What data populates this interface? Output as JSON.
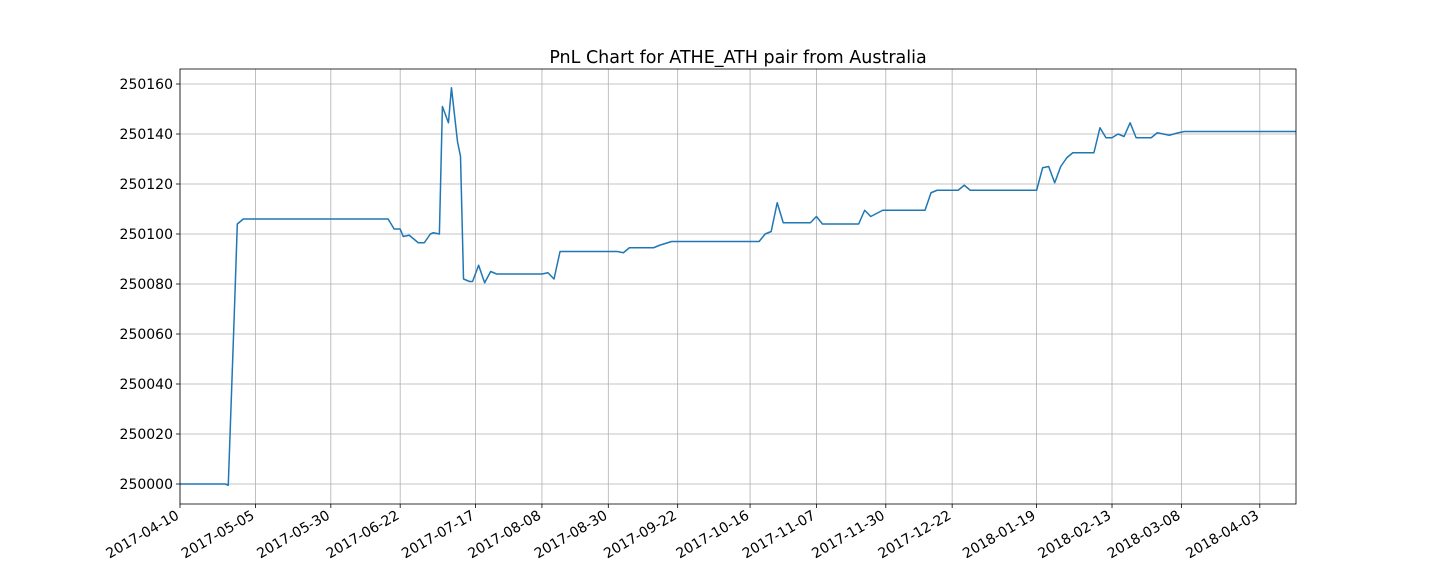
{
  "chart_data": {
    "type": "line",
    "title": "PnL Chart for ATHE_ATH pair from Australia",
    "xlabel": "",
    "ylabel": "",
    "x_type": "date",
    "xlim": [
      "2017-04-10",
      "2018-04-15"
    ],
    "ylim": [
      249992,
      250166
    ],
    "x_ticks": [
      "2017-04-10",
      "2017-05-05",
      "2017-05-30",
      "2017-06-22",
      "2017-07-17",
      "2017-08-08",
      "2017-08-30",
      "2017-09-22",
      "2017-10-16",
      "2017-11-07",
      "2017-11-30",
      "2017-12-22",
      "2018-01-19",
      "2018-02-13",
      "2018-03-08",
      "2018-04-03"
    ],
    "y_ticks": [
      250000,
      250020,
      250040,
      250060,
      250080,
      250100,
      250120,
      250140,
      250160
    ],
    "grid": true,
    "legend": "none",
    "series": [
      {
        "color": "#1f77b4",
        "points": [
          [
            "2017-04-10",
            250000
          ],
          [
            "2017-04-25",
            250000
          ],
          [
            "2017-04-26",
            249999.5
          ],
          [
            "2017-04-28",
            250068
          ],
          [
            "2017-04-29",
            250104
          ],
          [
            "2017-05-01",
            250106
          ],
          [
            "2017-06-18",
            250106
          ],
          [
            "2017-06-20",
            250102
          ],
          [
            "2017-06-22",
            250102
          ],
          [
            "2017-06-23",
            250099
          ],
          [
            "2017-06-25",
            250099.5
          ],
          [
            "2017-06-28",
            250096.5
          ],
          [
            "2017-06-30",
            250096.5
          ],
          [
            "2017-07-02",
            250100
          ],
          [
            "2017-07-03",
            250100.5
          ],
          [
            "2017-07-05",
            250100
          ],
          [
            "2017-07-06",
            250151
          ],
          [
            "2017-07-08",
            250144.5
          ],
          [
            "2017-07-09",
            250158.5
          ],
          [
            "2017-07-11",
            250137
          ],
          [
            "2017-07-12",
            250131
          ],
          [
            "2017-07-13",
            250082
          ],
          [
            "2017-07-15",
            250081
          ],
          [
            "2017-07-16",
            250081
          ],
          [
            "2017-07-18",
            250087.5
          ],
          [
            "2017-07-20",
            250080.5
          ],
          [
            "2017-07-22",
            250085
          ],
          [
            "2017-07-24",
            250084
          ],
          [
            "2017-08-08",
            250084
          ],
          [
            "2017-08-10",
            250084.5
          ],
          [
            "2017-08-12",
            250082
          ],
          [
            "2017-08-14",
            250093
          ],
          [
            "2017-09-02",
            250093
          ],
          [
            "2017-09-04",
            250092.5
          ],
          [
            "2017-09-06",
            250094.5
          ],
          [
            "2017-09-14",
            250094.5
          ],
          [
            "2017-09-16",
            250095.5
          ],
          [
            "2017-09-20",
            250097
          ],
          [
            "2017-10-19",
            250097
          ],
          [
            "2017-10-21",
            250100
          ],
          [
            "2017-10-23",
            250101
          ],
          [
            "2017-10-25",
            250112.5
          ],
          [
            "2017-10-27",
            250104.5
          ],
          [
            "2017-11-05",
            250104.5
          ],
          [
            "2017-11-07",
            250107
          ],
          [
            "2017-11-09",
            250104
          ],
          [
            "2017-11-21",
            250104
          ],
          [
            "2017-11-23",
            250109.5
          ],
          [
            "2017-11-25",
            250107
          ],
          [
            "2017-11-29",
            250109.5
          ],
          [
            "2017-12-13",
            250109.5
          ],
          [
            "2017-12-15",
            250116.5
          ],
          [
            "2017-12-17",
            250117.5
          ],
          [
            "2017-12-24",
            250117.5
          ],
          [
            "2017-12-26",
            250119.5
          ],
          [
            "2017-12-28",
            250117.5
          ],
          [
            "2018-01-19",
            250117.5
          ],
          [
            "2018-01-21",
            250126.5
          ],
          [
            "2018-01-23",
            250127
          ],
          [
            "2018-01-25",
            250120.5
          ],
          [
            "2018-01-27",
            250127
          ],
          [
            "2018-01-29",
            250130.5
          ],
          [
            "2018-01-31",
            250132.5
          ],
          [
            "2018-02-07",
            250132.5
          ],
          [
            "2018-02-09",
            250142.5
          ],
          [
            "2018-02-11",
            250138.5
          ],
          [
            "2018-02-13",
            250138.5
          ],
          [
            "2018-02-15",
            250140
          ],
          [
            "2018-02-17",
            250139
          ],
          [
            "2018-02-19",
            250144.5
          ],
          [
            "2018-02-21",
            250138.5
          ],
          [
            "2018-02-26",
            250138.5
          ],
          [
            "2018-02-28",
            250140.5
          ],
          [
            "2018-03-04",
            250139.5
          ],
          [
            "2018-03-07",
            250140.5
          ],
          [
            "2018-03-09",
            250141
          ],
          [
            "2018-04-15",
            250141
          ]
        ]
      }
    ]
  }
}
